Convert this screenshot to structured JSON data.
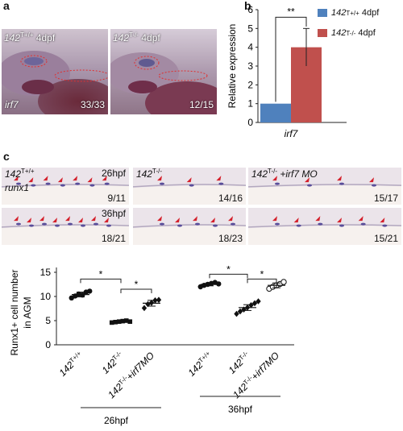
{
  "panel_a": {
    "letter": "a",
    "images": [
      {
        "genotype": "142",
        "superscript": "T+/+",
        "stage": "4dpf",
        "gene": "irf7",
        "count": "33/33"
      },
      {
        "genotype": "142",
        "superscript": "T-/-",
        "stage": "4dpf",
        "gene": "",
        "count": "12/15"
      }
    ]
  },
  "panel_b": {
    "letter": "b",
    "significance": "**",
    "legend": [
      {
        "genotype": "142",
        "superscript": "T+/+",
        "stage": "4dpf",
        "color": "#4f81bd"
      },
      {
        "genotype": "142",
        "superscript": "T-/-",
        "stage": "4dpf",
        "color": "#c0504d"
      }
    ]
  },
  "panel_c": {
    "letter": "c",
    "gene": "runx1",
    "columns": [
      {
        "genotype": "142",
        "superscript": "T+/+",
        "suffix": ""
      },
      {
        "genotype": "142",
        "superscript": "T-/-",
        "suffix": ""
      },
      {
        "genotype": "142",
        "superscript": "T-/-",
        "suffix": "+irf7 MO"
      }
    ],
    "rows": [
      {
        "stage": "26hpf",
        "counts": [
          "9/11",
          "14/16",
          "15/17"
        ]
      },
      {
        "stage": "36hpf",
        "counts": [
          "18/21",
          "18/23",
          "15/21"
        ]
      }
    ]
  },
  "chart_data": [
    {
      "type": "bar",
      "panel": "b",
      "categories": [
        "irf7"
      ],
      "series": [
        {
          "name": "142T+/+ 4dpf",
          "values": [
            1.0
          ],
          "error": [
            0
          ],
          "color": "#4f81bd"
        },
        {
          "name": "142T-/- 4dpf",
          "values": [
            4.0
          ],
          "error": [
            1.0
          ],
          "color": "#c0504d"
        }
      ],
      "ylabel": "Relative expression",
      "xlabel": "irf7",
      "ylim": [
        0,
        6
      ],
      "yticks": [
        0,
        1,
        2,
        3,
        4,
        5,
        6
      ],
      "significance": "**"
    },
    {
      "type": "scatter",
      "panel": "c",
      "ylabel": "Runx1+ cell number in AGM",
      "ylim": [
        0,
        15
      ],
      "yticks": [
        0,
        5,
        10,
        15
      ],
      "groups": [
        {
          "label": "142T+/+",
          "stage": "26hpf",
          "mean": 10.4,
          "sem": 0.5,
          "marker": "circle-filled",
          "values": [
            9.7,
            10.1,
            10.5,
            10.3,
            10.9,
            11.1
          ]
        },
        {
          "label": "142T-/-",
          "stage": "26hpf",
          "mean": 4.8,
          "sem": 0.2,
          "marker": "square-filled",
          "values": [
            4.6,
            4.7,
            4.8,
            4.9,
            5.0,
            4.8
          ]
        },
        {
          "label": "142T-/-+irf7MO",
          "stage": "26hpf",
          "mean": 8.6,
          "sem": 0.6,
          "marker": "diamond-filled",
          "values": [
            7.6,
            8.4,
            8.7,
            9.2,
            9.3
          ]
        },
        {
          "label": "142T+/+",
          "stage": "36hpf",
          "mean": 12.5,
          "sem": 0.3,
          "marker": "circle-filled",
          "values": [
            12.0,
            12.3,
            12.5,
            12.7,
            12.9,
            12.6
          ]
        },
        {
          "label": "142T-/-",
          "stage": "36hpf",
          "mean": 7.7,
          "sem": 0.6,
          "marker": "diamond-filled",
          "values": [
            6.4,
            6.9,
            7.3,
            7.7,
            8.2,
            8.6,
            9.0
          ]
        },
        {
          "label": "142T-/-+irf7MO",
          "stage": "36hpf",
          "mean": 12.3,
          "sem": 0.5,
          "marker": "circle-open",
          "values": [
            11.6,
            12.0,
            12.3,
            12.6,
            13.0
          ]
        }
      ],
      "significance": [
        "*",
        "*",
        "*",
        "*"
      ],
      "stage_labels": [
        "26hpf",
        "36hpf"
      ]
    }
  ]
}
